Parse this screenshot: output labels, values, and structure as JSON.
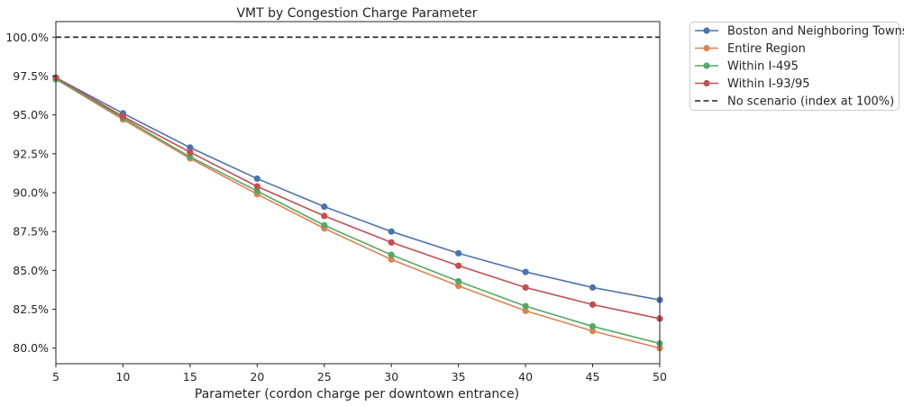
{
  "chart_data": {
    "type": "line",
    "title": "VMT by Congestion Charge Parameter",
    "xlabel": "Parameter (cordon charge per downtown entrance)",
    "ylabel": "",
    "x": [
      5,
      10,
      15,
      20,
      25,
      30,
      35,
      40,
      45,
      50
    ],
    "xlim": [
      5,
      50
    ],
    "ylim": [
      0.79,
      1.01
    ],
    "x_ticks": [
      5,
      10,
      15,
      20,
      25,
      30,
      35,
      40,
      45,
      50
    ],
    "y_ticks": [
      0.8,
      0.825,
      0.85,
      0.875,
      0.9,
      0.925,
      0.95,
      0.975,
      1.0
    ],
    "y_tick_labels": [
      "80.0%",
      "82.5%",
      "85.0%",
      "87.5%",
      "90.0%",
      "92.5%",
      "95.0%",
      "97.5%",
      "100.0%"
    ],
    "grid": false,
    "legend_position": "outside-top-right",
    "series": [
      {
        "name": "Boston and Neighboring Towns",
        "color": "#4c72b0",
        "values": [
          0.974,
          0.951,
          0.929,
          0.909,
          0.891,
          0.875,
          0.861,
          0.849,
          0.839,
          0.831
        ]
      },
      {
        "name": "Entire Region",
        "color": "#dd8452",
        "values": [
          0.973,
          0.947,
          0.922,
          0.899,
          0.877,
          0.857,
          0.84,
          0.824,
          0.811,
          0.8
        ]
      },
      {
        "name": "Within I-495",
        "color": "#55a868",
        "values": [
          0.973,
          0.948,
          0.923,
          0.901,
          0.879,
          0.86,
          0.843,
          0.827,
          0.814,
          0.803
        ]
      },
      {
        "name": "Within I-93/95",
        "color": "#c44e52",
        "values": [
          0.974,
          0.949,
          0.926,
          0.904,
          0.885,
          0.868,
          0.853,
          0.839,
          0.828,
          0.819
        ]
      }
    ],
    "reference_line": {
      "name": "No scenario (index at 100%)",
      "y": 1.0,
      "color": "#222222",
      "style": "dashed"
    }
  }
}
